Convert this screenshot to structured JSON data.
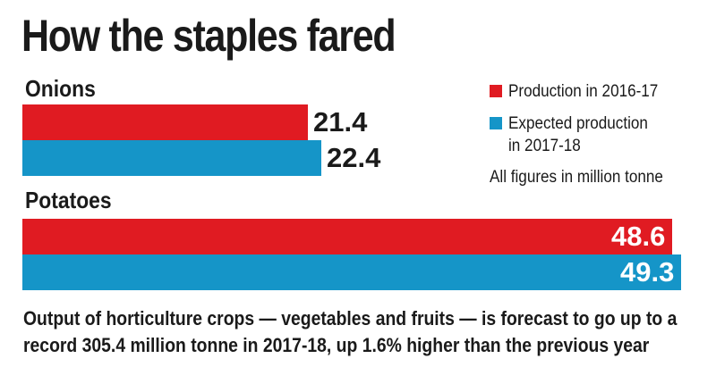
{
  "title": "How the staples fared",
  "legend": {
    "note": "All figures in million tonne"
  },
  "footnote": "Output of horticulture crops — vegetables and fruits — is forecast to go up to a record 305.4 million tonne in 2017-18, up 1.6% higher than the previous year",
  "chart_data": {
    "type": "bar",
    "orientation": "horizontal",
    "title": "How the staples fared",
    "categories": [
      "Onions",
      "Potatoes"
    ],
    "series": [
      {
        "name": "Production in 2016-17",
        "color": "#e01b22",
        "values": [
          21.4,
          48.6
        ]
      },
      {
        "name": "Expected production in 2017-18",
        "color": "#1595c8",
        "values": [
          22.4,
          49.3
        ]
      }
    ],
    "unit": "million tonne",
    "value_labels": [
      [
        "21.4",
        "22.4"
      ],
      [
        "48.6",
        "49.3"
      ]
    ],
    "xlim": [
      0,
      49.3
    ],
    "grid": false,
    "legend_position": "right"
  }
}
